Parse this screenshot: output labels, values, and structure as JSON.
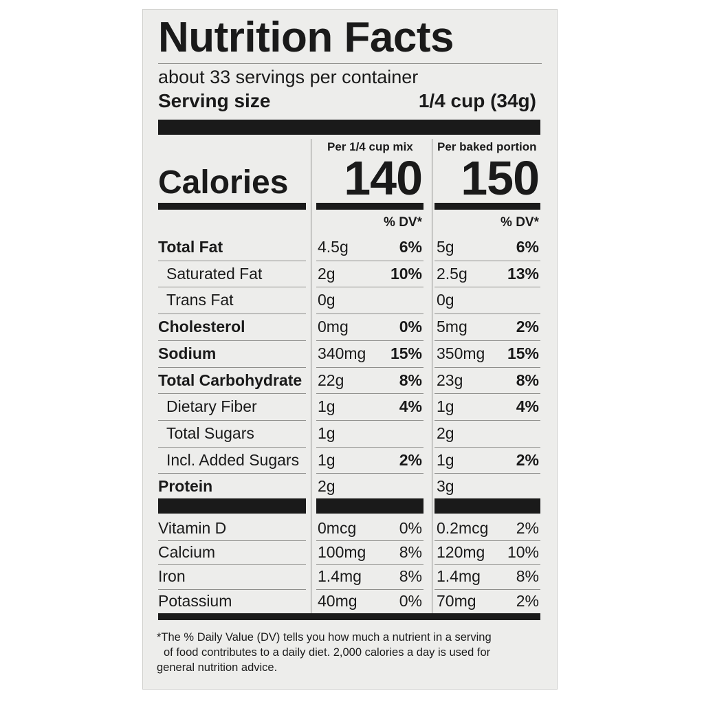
{
  "title": "Nutrition Facts",
  "servings_per_container": "about 33 servings per container",
  "serving_size": {
    "label": "Serving size",
    "value": "1/4 cup (34g)"
  },
  "columns": [
    "Per 1/4 cup mix",
    "Per baked portion"
  ],
  "calories": {
    "label": "Calories",
    "mix": "140",
    "baked": "150"
  },
  "dv_header": "% DV*",
  "nutrients": [
    {
      "name": "Total Fat",
      "bold": true,
      "indent": false,
      "mix_amt": "4.5g",
      "mix_dv": "6%",
      "baked_amt": "5g",
      "baked_dv": "6%"
    },
    {
      "name": "Saturated Fat",
      "bold": false,
      "indent": true,
      "mix_amt": "2g",
      "mix_dv": "10%",
      "baked_amt": "2.5g",
      "baked_dv": "13%"
    },
    {
      "name": "Trans Fat",
      "bold": false,
      "indent": true,
      "mix_amt": "0g",
      "mix_dv": "",
      "baked_amt": "0g",
      "baked_dv": ""
    },
    {
      "name": "Cholesterol",
      "bold": true,
      "indent": false,
      "mix_amt": "0mg",
      "mix_dv": "0%",
      "baked_amt": "5mg",
      "baked_dv": "2%"
    },
    {
      "name": "Sodium",
      "bold": true,
      "indent": false,
      "mix_amt": "340mg",
      "mix_dv": "15%",
      "baked_amt": "350mg",
      "baked_dv": "15%"
    },
    {
      "name": "Total Carbohydrate",
      "bold": true,
      "indent": false,
      "mix_amt": "22g",
      "mix_dv": "8%",
      "baked_amt": "23g",
      "baked_dv": "8%"
    },
    {
      "name": "Dietary Fiber",
      "bold": false,
      "indent": true,
      "mix_amt": "1g",
      "mix_dv": "4%",
      "baked_amt": "1g",
      "baked_dv": "4%"
    },
    {
      "name": "Total Sugars",
      "bold": false,
      "indent": true,
      "mix_amt": "1g",
      "mix_dv": "",
      "baked_amt": "2g",
      "baked_dv": ""
    },
    {
      "name": "Incl. Added Sugars",
      "bold": false,
      "indent": true,
      "mix_amt": "1g",
      "mix_dv": "2%",
      "baked_amt": "1g",
      "baked_dv": "2%"
    },
    {
      "name": "Protein",
      "bold": true,
      "indent": false,
      "mix_amt": "2g",
      "mix_dv": "",
      "baked_amt": "3g",
      "baked_dv": ""
    }
  ],
  "vitamins": [
    {
      "name": "Vitamin D",
      "mix_amt": "0mcg",
      "mix_dv": "0%",
      "baked_amt": "0.2mcg",
      "baked_dv": "2%"
    },
    {
      "name": "Calcium",
      "mix_amt": "100mg",
      "mix_dv": "8%",
      "baked_amt": "120mg",
      "baked_dv": "10%"
    },
    {
      "name": "Iron",
      "mix_amt": "1.4mg",
      "mix_dv": "8%",
      "baked_amt": "1.4mg",
      "baked_dv": "8%"
    },
    {
      "name": "Potassium",
      "mix_amt": "40mg",
      "mix_dv": "0%",
      "baked_amt": "70mg",
      "baked_dv": "2%"
    }
  ],
  "footnote": [
    "*The % Daily Value (DV) tells you how much a nutrient in a serving",
    "of food contributes to a daily diet.  2,000 calories a day is used for",
    "general nutrition advice."
  ]
}
